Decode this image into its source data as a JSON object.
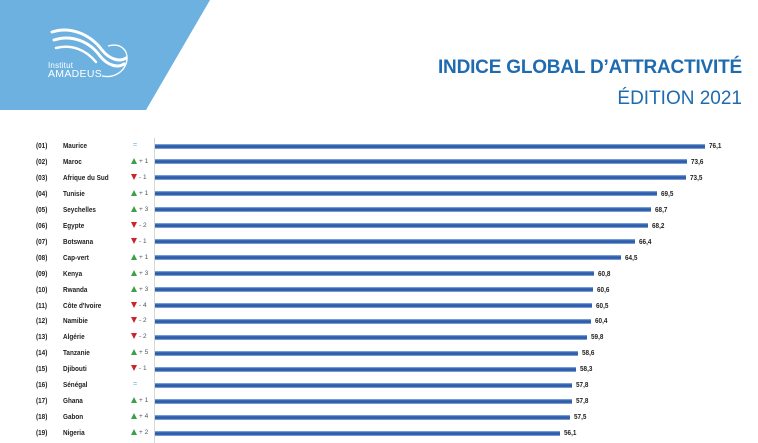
{
  "header": {
    "logo_small": "Institut",
    "logo_big": "AMADEUS",
    "title": "INDICE GLOBAL D’ATTRACTIVITÉ",
    "subtitle": "ÉDITION 2021"
  },
  "colors": {
    "banner": "#6cb1e0",
    "title": "#1f6bb0",
    "bar": "#2a57a5",
    "up": "#3aa04a",
    "down": "#c9252c",
    "equal": "#8fc5e6"
  },
  "chart_data": {
    "type": "bar",
    "orientation": "horizontal",
    "title": "INDICE GLOBAL D’ATTRACTIVITÉ",
    "subtitle": "ÉDITION 2021",
    "xlabel": "",
    "ylabel": "",
    "grid": false,
    "legend": null,
    "categories": [
      "Maurice",
      "Maroc",
      "Afrique du Sud",
      "Tunisie",
      "Seychelles",
      "Egypte",
      "Botswana",
      "Cap-vert",
      "Kenya",
      "Rwanda",
      "Côte d'Ivoire",
      "Namibie",
      "Algérie",
      "Tanzanie",
      "Djibouti",
      "Sénégal",
      "Ghana",
      "Gabon",
      "Nigeria"
    ],
    "values": [
      76.1,
      73.6,
      73.5,
      69.5,
      68.7,
      68.2,
      66.4,
      64.5,
      60.8,
      60.6,
      60.5,
      60.4,
      59.8,
      58.6,
      58.3,
      57.8,
      57.8,
      57.5,
      56.1
    ],
    "rows": [
      {
        "rank": "(01)",
        "country": "Maurice",
        "change_dir": "equal",
        "change": "=",
        "value": "76,1"
      },
      {
        "rank": "(02)",
        "country": "Maroc",
        "change_dir": "up",
        "change": "+ 1",
        "value": "73,6"
      },
      {
        "rank": "(03)",
        "country": "Afrique du Sud",
        "change_dir": "down",
        "change": "- 1",
        "value": "73,5"
      },
      {
        "rank": "(04)",
        "country": "Tunisie",
        "change_dir": "up",
        "change": "+ 1",
        "value": "69,5"
      },
      {
        "rank": "(05)",
        "country": "Seychelles",
        "change_dir": "up",
        "change": "+ 3",
        "value": "68,7"
      },
      {
        "rank": "(06)",
        "country": "Egypte",
        "change_dir": "down",
        "change": "- 2",
        "value": "68,2"
      },
      {
        "rank": "(07)",
        "country": "Botswana",
        "change_dir": "down",
        "change": "- 1",
        "value": "66,4"
      },
      {
        "rank": "(08)",
        "country": "Cap-vert",
        "change_dir": "up",
        "change": "+ 1",
        "value": "64,5"
      },
      {
        "rank": "(09)",
        "country": "Kenya",
        "change_dir": "up",
        "change": "+ 3",
        "value": "60,8"
      },
      {
        "rank": "(10)",
        "country": "Rwanda",
        "change_dir": "up",
        "change": "+ 3",
        "value": "60,6"
      },
      {
        "rank": "(11)",
        "country": "Côte d'Ivoire",
        "change_dir": "down",
        "change": "- 4",
        "value": "60,5"
      },
      {
        "rank": "(12)",
        "country": "Namibie",
        "change_dir": "down",
        "change": "- 2",
        "value": "60,4"
      },
      {
        "rank": "(13)",
        "country": "Algérie",
        "change_dir": "down",
        "change": "- 2",
        "value": "59,8"
      },
      {
        "rank": "(14)",
        "country": "Tanzanie",
        "change_dir": "up",
        "change": "+ 5",
        "value": "58,6"
      },
      {
        "rank": "(15)",
        "country": "Djibouti",
        "change_dir": "down",
        "change": "- 1",
        "value": "58,3"
      },
      {
        "rank": "(16)",
        "country": "Sénégal",
        "change_dir": "equal",
        "change": "=",
        "value": "57,8"
      },
      {
        "rank": "(17)",
        "country": "Ghana",
        "change_dir": "up",
        "change": "+ 1",
        "value": "57,8"
      },
      {
        "rank": "(18)",
        "country": "Gabon",
        "change_dir": "up",
        "change": "+ 4",
        "value": "57,5"
      },
      {
        "rank": "(19)",
        "country": "Nigeria",
        "change_dir": "up",
        "change": "+ 2",
        "value": "56,1"
      }
    ]
  }
}
